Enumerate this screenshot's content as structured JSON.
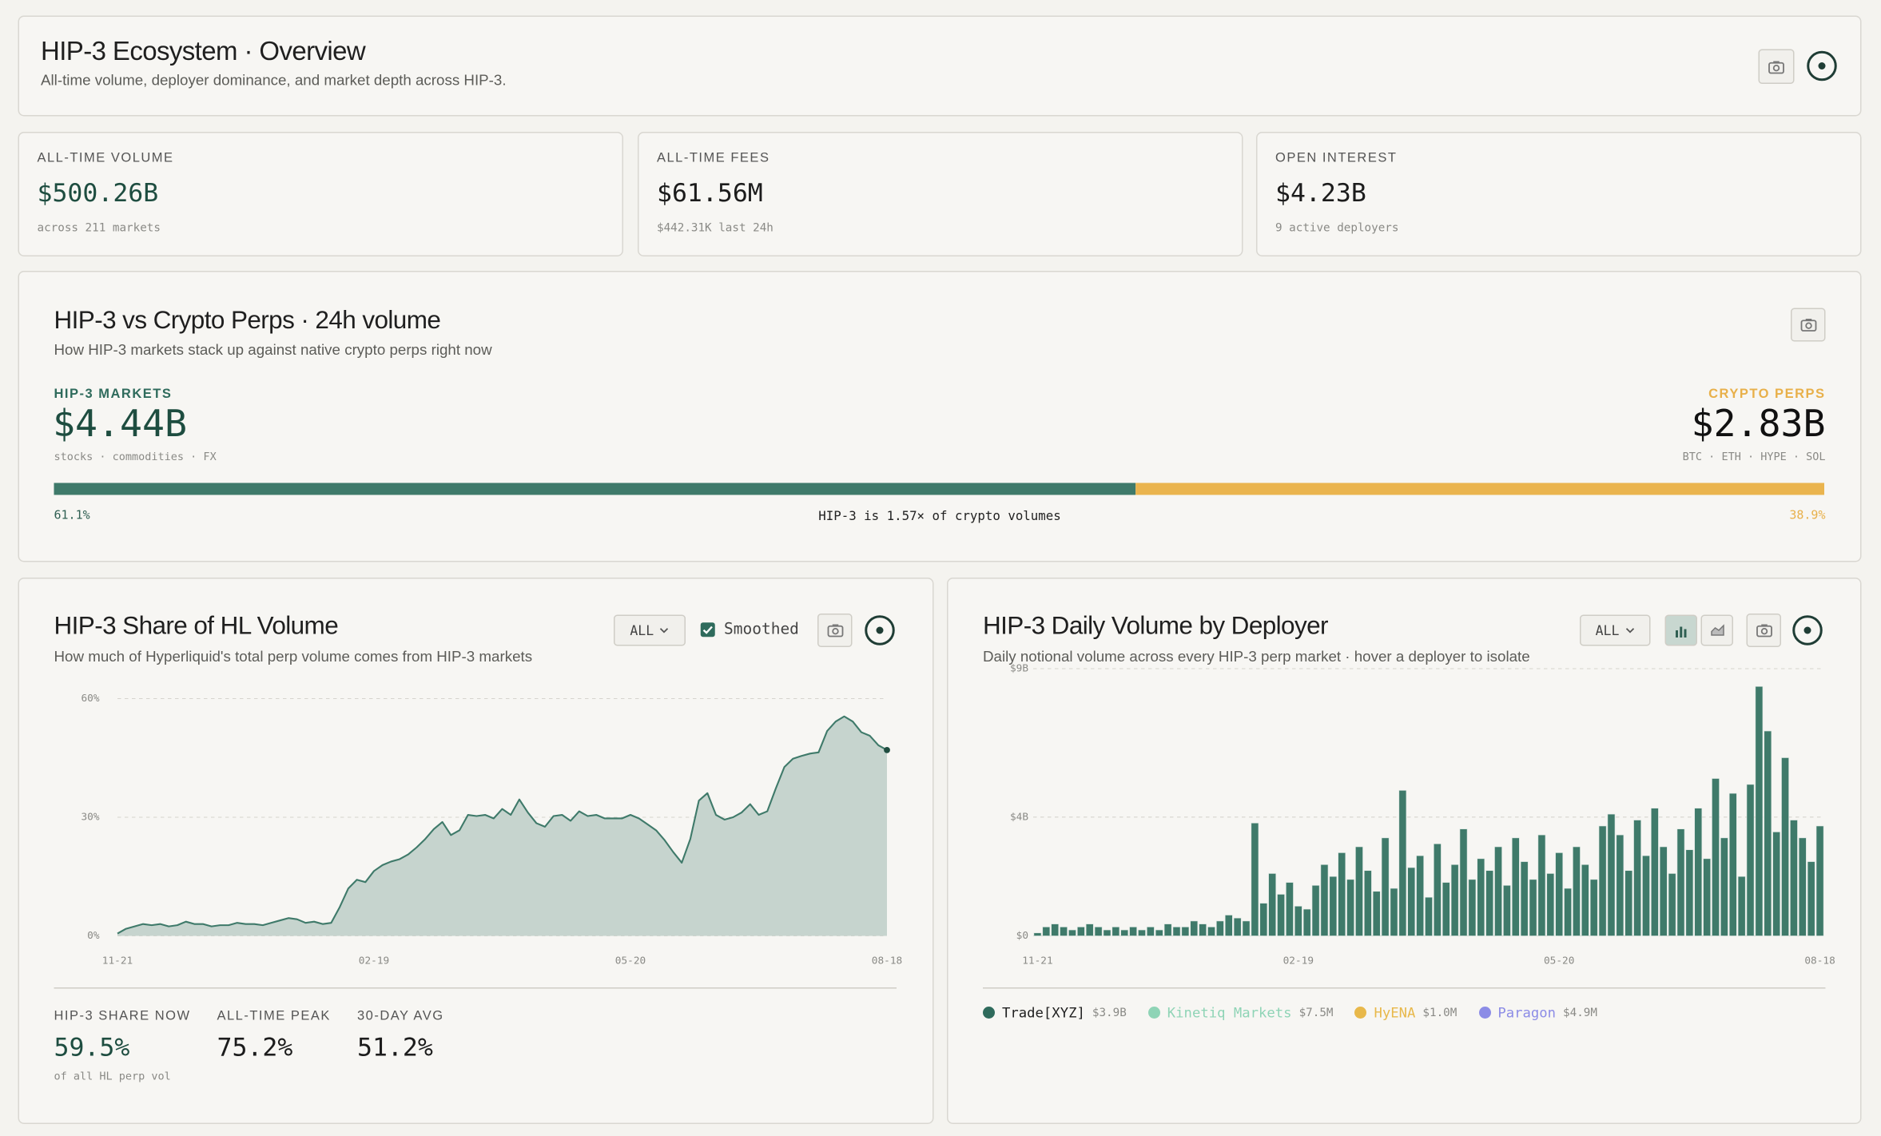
{
  "header": {
    "title": "HIP-3 Ecosystem · Overview",
    "subtitle": "All-time volume, deployer dominance, and market depth across HIP-3."
  },
  "kpis": [
    {
      "label": "ALL-TIME VOLUME",
      "value": "$500.26B",
      "note": "across 211 markets"
    },
    {
      "label": "ALL-TIME FEES",
      "value": "$61.56M",
      "note": "$442.31K last 24h"
    },
    {
      "label": "OPEN INTEREST",
      "value": "$4.23B",
      "note": "9 active deployers"
    }
  ],
  "comparison": {
    "title": "HIP-3 vs Crypto Perps · 24h volume",
    "subtitle": "How HIP-3 markets stack up against native crypto perps right now",
    "left": {
      "label": "HIP-3 MARKETS",
      "value": "$4.44B",
      "note": "stocks · commodities · FX",
      "share": 61.1,
      "share_label": "61.1%",
      "color": "#3f7a6a"
    },
    "right": {
      "label": "CRYPTO PERPS",
      "value": "$2.83B",
      "note": "BTC · ETH · HYPE · SOL",
      "share": 38.9,
      "share_label": "38.9%",
      "color": "#eab44e"
    },
    "ratio_text": "HIP-3 is 1.57× of crypto volumes"
  },
  "share_panel": {
    "range_button": "ALL",
    "smoothed_label": "Smoothed",
    "stats": [
      {
        "label": "HIP-3 SHARE NOW",
        "value": "59.5%",
        "note": "of all HL perp vol"
      },
      {
        "label": "ALL-TIME PEAK",
        "value": "75.2%"
      },
      {
        "label": "30-DAY AVG",
        "value": "51.2%"
      }
    ]
  },
  "deployer_panel": {
    "range_button": "ALL",
    "legend": [
      {
        "name": "Trade[XYZ]",
        "total": "$3.9B",
        "color": "#2f6b5c"
      },
      {
        "name": "Kinetiq Markets",
        "total": "$7.5M",
        "color": "#8fd4b6"
      },
      {
        "name": "HyENA",
        "total": "$1.0M",
        "color": "#e8b84a"
      },
      {
        "name": "Paragon",
        "total": "$4.9M",
        "color": "#8c8ce6"
      }
    ]
  },
  "chart_data": [
    {
      "type": "area",
      "title": "HIP-3 Share of HL Volume",
      "subtitle": "How much of Hyperliquid's total perp volume comes from HIP-3 markets",
      "color": "#3f7a6a",
      "fill": "#c6d4ce",
      "grid": true,
      "ylim": [
        0,
        60
      ],
      "yticks": [
        {
          "value": 0,
          "label": "0%"
        },
        {
          "value": 30,
          "label": "30%"
        },
        {
          "value": 60,
          "label": "60%"
        }
      ],
      "x": [
        "11-21",
        null,
        null,
        null,
        null,
        null,
        null,
        null,
        null,
        null,
        null,
        null,
        null,
        null,
        null,
        null,
        null,
        null,
        null,
        null,
        null,
        null,
        null,
        null,
        null,
        null,
        null,
        null,
        null,
        null,
        "02-19",
        null,
        null,
        null,
        null,
        null,
        null,
        null,
        null,
        null,
        null,
        null,
        null,
        null,
        null,
        null,
        null,
        null,
        null,
        null,
        null,
        null,
        null,
        null,
        null,
        null,
        null,
        null,
        null,
        null,
        "05-20",
        null,
        null,
        null,
        null,
        null,
        null,
        null,
        null,
        null,
        null,
        null,
        null,
        null,
        null,
        null,
        null,
        null,
        null,
        null,
        null,
        null,
        null,
        null,
        null,
        null,
        null,
        null,
        null,
        null,
        "08-18"
      ],
      "values": [
        0.6,
        1.8,
        2.4,
        3.0,
        2.7,
        3.0,
        2.4,
        2.7,
        3.6,
        3.0,
        3.0,
        2.4,
        2.7,
        2.7,
        3.3,
        3.0,
        3.0,
        2.7,
        3.3,
        3.9,
        4.5,
        4.2,
        3.3,
        3.6,
        3.0,
        3.3,
        7.3,
        12.0,
        14.2,
        13.6,
        16.4,
        17.9,
        18.8,
        19.4,
        20.6,
        22.4,
        24.5,
        27.0,
        28.8,
        25.5,
        26.7,
        30.6,
        30.3,
        30.6,
        29.7,
        32.1,
        30.6,
        34.5,
        31.2,
        28.5,
        27.6,
        30.3,
        30.6,
        29.1,
        31.5,
        30.3,
        30.6,
        29.7,
        29.7,
        29.7,
        30.6,
        29.7,
        28.2,
        26.7,
        24.2,
        21.2,
        18.5,
        24.5,
        34.2,
        36.1,
        30.6,
        29.4,
        30.0,
        31.2,
        33.3,
        30.6,
        31.5,
        37.3,
        42.7,
        44.8,
        45.5,
        46.1,
        46.4,
        51.8,
        54.2,
        55.5,
        54.2,
        51.5,
        50.6,
        48.2,
        47.0
      ]
    },
    {
      "type": "bar",
      "title": "HIP-3 Daily Volume by Deployer",
      "subtitle": "Daily notional volume across every HIP-3 perp market · hover a deployer to isolate",
      "color": "#3f7a6a",
      "grid": true,
      "ylim": [
        0,
        9
      ],
      "yticks": [
        {
          "value": 0,
          "label": "$0"
        },
        {
          "value": 4,
          "label": "$4B"
        },
        {
          "value": 9,
          "label": "$9B"
        }
      ],
      "x": [
        "11-21",
        null,
        null,
        null,
        null,
        null,
        null,
        null,
        null,
        null,
        null,
        null,
        null,
        null,
        null,
        null,
        null,
        null,
        null,
        null,
        null,
        null,
        null,
        null,
        null,
        null,
        null,
        null,
        null,
        null,
        "02-19",
        null,
        null,
        null,
        null,
        null,
        null,
        null,
        null,
        null,
        null,
        null,
        null,
        null,
        null,
        null,
        null,
        null,
        null,
        null,
        null,
        null,
        null,
        null,
        null,
        null,
        null,
        null,
        null,
        null,
        "05-20",
        null,
        null,
        null,
        null,
        null,
        null,
        null,
        null,
        null,
        null,
        null,
        null,
        null,
        null,
        null,
        null,
        null,
        null,
        null,
        null,
        null,
        null,
        null,
        null,
        null,
        null,
        null,
        null,
        null,
        "08-18"
      ],
      "values": [
        0.1,
        0.3,
        0.4,
        0.3,
        0.2,
        0.3,
        0.4,
        0.3,
        0.2,
        0.3,
        0.2,
        0.3,
        0.2,
        0.3,
        0.2,
        0.4,
        0.3,
        0.3,
        0.5,
        0.4,
        0.3,
        0.5,
        0.7,
        0.6,
        0.5,
        3.8,
        1.1,
        2.1,
        1.4,
        1.8,
        1.0,
        0.9,
        1.7,
        2.4,
        2.0,
        2.8,
        1.9,
        3.0,
        2.2,
        1.5,
        3.3,
        1.6,
        4.9,
        2.3,
        2.7,
        1.3,
        3.1,
        1.8,
        2.4,
        3.6,
        1.9,
        2.6,
        2.2,
        3.0,
        1.7,
        3.3,
        2.5,
        1.9,
        3.4,
        2.1,
        2.8,
        1.6,
        3.0,
        2.4,
        1.9,
        3.7,
        4.1,
        3.4,
        2.2,
        3.9,
        2.7,
        4.3,
        3.0,
        2.1,
        3.6,
        2.9,
        4.3,
        2.6,
        5.3,
        3.3,
        4.8,
        2.0,
        5.1,
        8.4,
        6.9,
        3.5,
        6.0,
        3.9,
        3.3,
        2.5,
        3.7
      ]
    }
  ]
}
